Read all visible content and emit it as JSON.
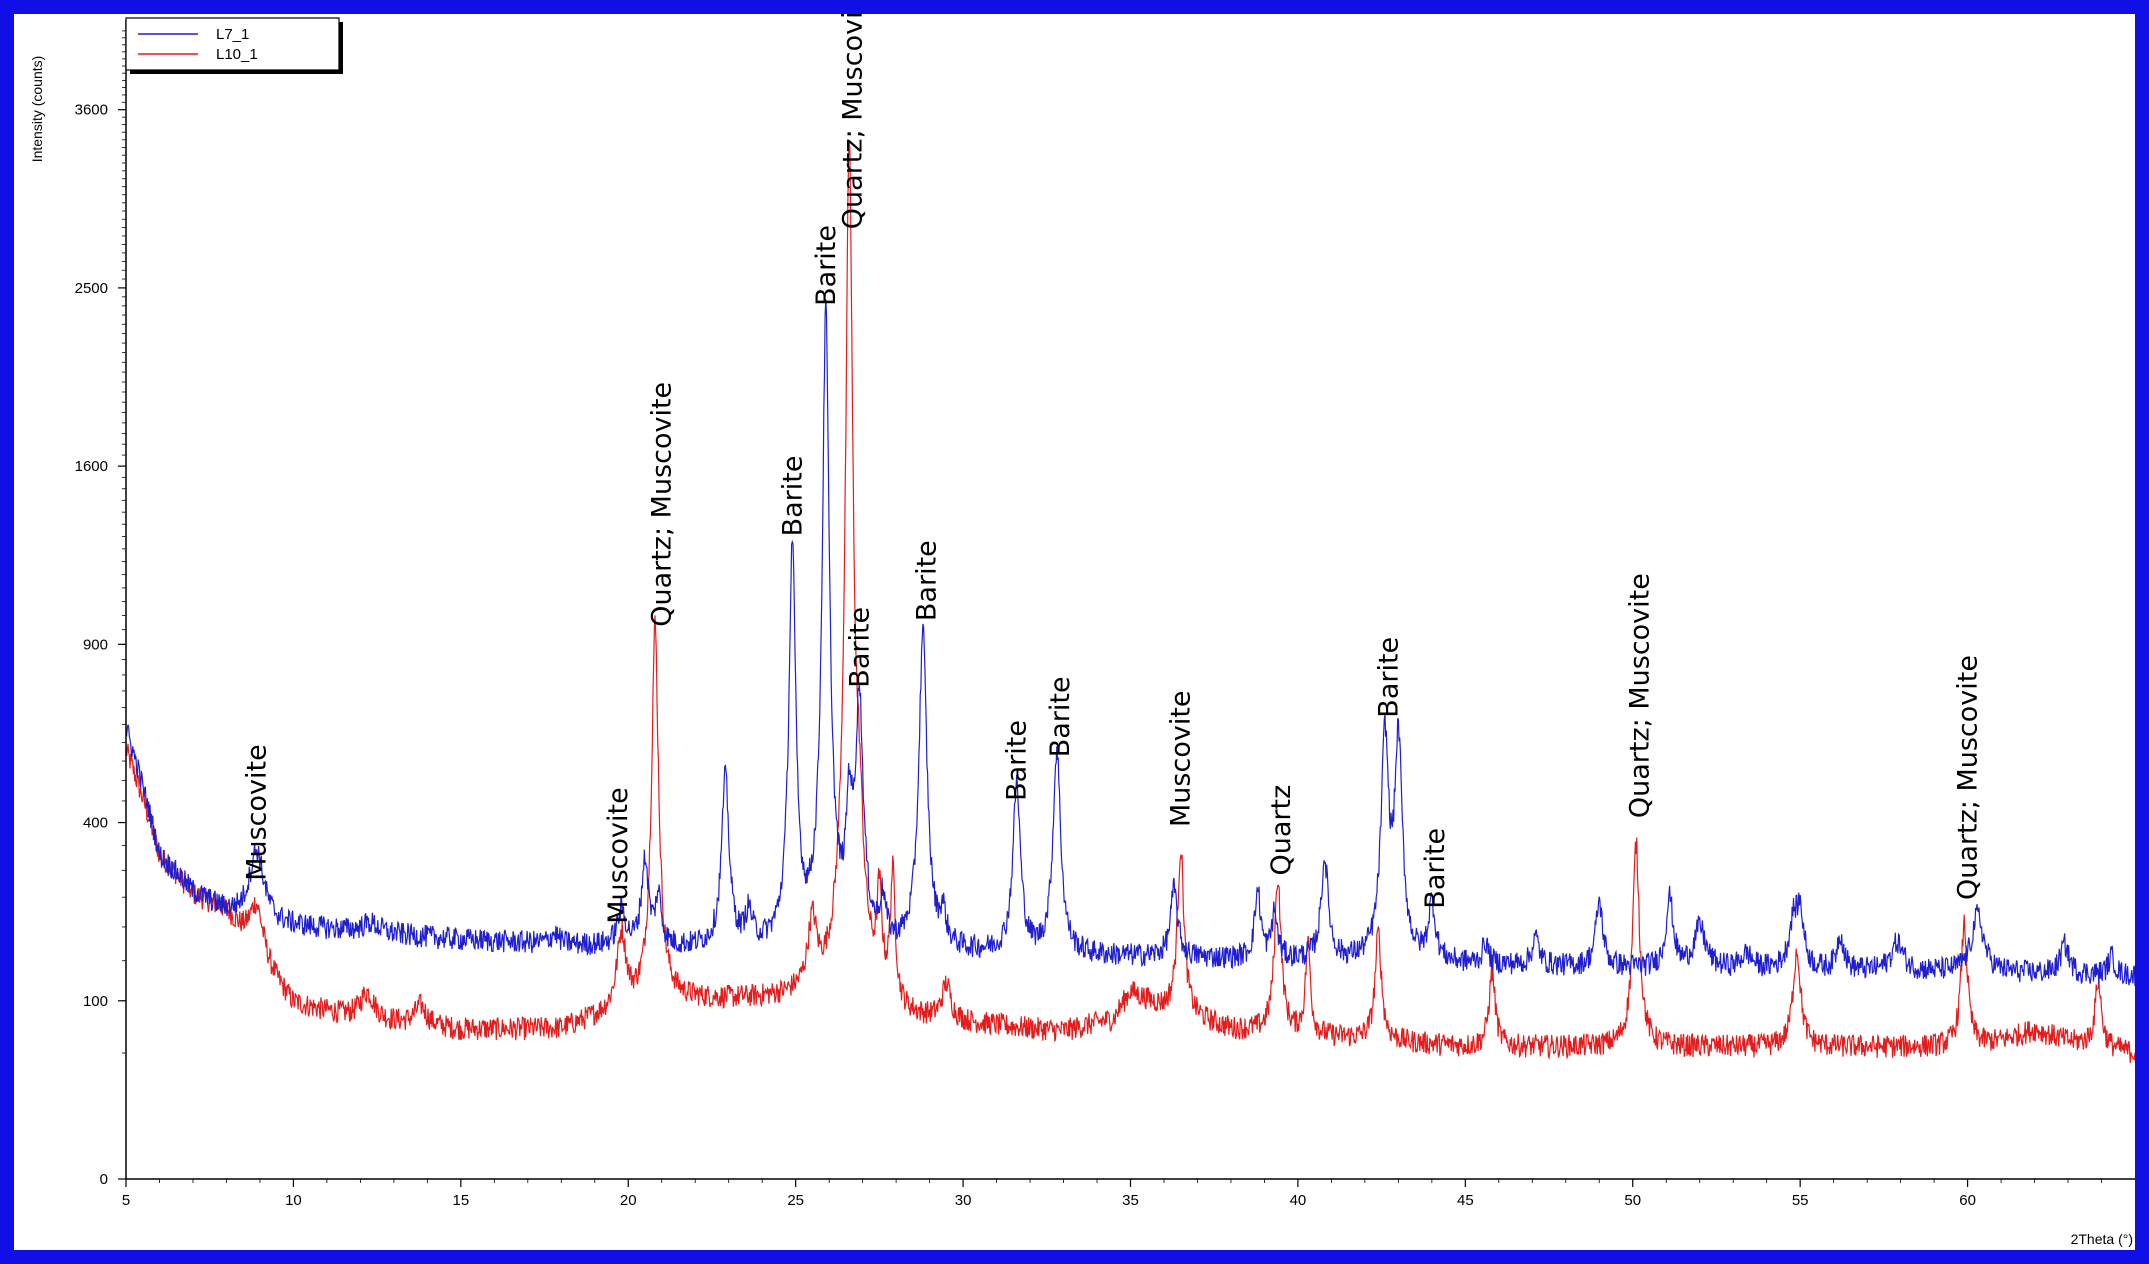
{
  "chart_data": {
    "type": "line",
    "ylabel": "Intensity (counts)",
    "xlabel": "2Theta (°)",
    "xlim": [
      5,
      65
    ],
    "y_ticks": [
      0,
      100,
      400,
      900,
      1600,
      2500,
      3600
    ],
    "y_tick_labels": [
      "0",
      "100",
      "400",
      "900",
      "1600",
      "2500",
      "3600"
    ],
    "y_scale": "sqrt",
    "ylim": [
      0,
      4200
    ],
    "x_ticks": [
      5,
      10,
      15,
      20,
      25,
      30,
      35,
      40,
      45,
      50,
      55,
      60
    ],
    "x_tick_labels": [
      "5",
      "10",
      "15",
      "20",
      "25",
      "30",
      "35",
      "40",
      "45",
      "50",
      "55",
      "60"
    ],
    "legend_position": "top-left",
    "grid": false,
    "series": [
      {
        "name": "L7_1",
        "color": "#1f1fd0",
        "baseline": [
          [
            5,
            640
          ],
          [
            6,
            330
          ],
          [
            7,
            260
          ],
          [
            8,
            225
          ],
          [
            9,
            205
          ],
          [
            12,
            192
          ],
          [
            15,
            180
          ],
          [
            20,
            168
          ],
          [
            25,
            165
          ],
          [
            30,
            160
          ],
          [
            35,
            155
          ],
          [
            40,
            150
          ],
          [
            45,
            145
          ],
          [
            50,
            140
          ],
          [
            55,
            137
          ],
          [
            60,
            135
          ],
          [
            65,
            130
          ]
        ],
        "peaks": [
          [
            8.9,
            135,
            0.25
          ],
          [
            12.3,
            15,
            0.3
          ],
          [
            17.8,
            15,
            0.15
          ],
          [
            19.8,
            55,
            0.15
          ],
          [
            20.5,
            150,
            0.12
          ],
          [
            20.9,
            80,
            0.1
          ],
          [
            22.9,
            340,
            0.12
          ],
          [
            23.6,
            50,
            0.12
          ],
          [
            24.9,
            1100,
            0.1
          ],
          [
            25.9,
            2200,
            0.1
          ],
          [
            26.6,
            250,
            0.1
          ],
          [
            26.9,
            560,
            0.12
          ],
          [
            27.6,
            70,
            0.1
          ],
          [
            28.8,
            780,
            0.12
          ],
          [
            29.4,
            50,
            0.1
          ],
          [
            31.6,
            330,
            0.12
          ],
          [
            32.8,
            420,
            0.12
          ],
          [
            36.3,
            110,
            0.12
          ],
          [
            38.8,
            110,
            0.1
          ],
          [
            39.3,
            70,
            0.1
          ],
          [
            40.8,
            170,
            0.12
          ],
          [
            42.6,
            470,
            0.12
          ],
          [
            43.0,
            460,
            0.12
          ],
          [
            44.0,
            90,
            0.12
          ],
          [
            45.6,
            30,
            0.1
          ],
          [
            47.1,
            40,
            0.12
          ],
          [
            49.0,
            100,
            0.12
          ],
          [
            51.1,
            110,
            0.12
          ],
          [
            52.0,
            60,
            0.2
          ],
          [
            53.4,
            20,
            0.2
          ],
          [
            54.8,
            70,
            0.15
          ],
          [
            55.0,
            80,
            0.12
          ],
          [
            56.2,
            50,
            0.12
          ],
          [
            57.9,
            40,
            0.2
          ],
          [
            60.3,
            85,
            0.2
          ],
          [
            62.9,
            40,
            0.15
          ],
          [
            64.3,
            25,
            0.12
          ]
        ]
      },
      {
        "name": "L10_1",
        "color": "#e51c1c",
        "baseline": [
          [
            5,
            580
          ],
          [
            6,
            330
          ],
          [
            7,
            255
          ],
          [
            8,
            225
          ],
          [
            9,
            140
          ],
          [
            10,
            95
          ],
          [
            12,
            80
          ],
          [
            15,
            70
          ],
          [
            18,
            70
          ],
          [
            19.5,
            85
          ],
          [
            21,
            100
          ],
          [
            23,
            100
          ],
          [
            25,
            100
          ],
          [
            27,
            95
          ],
          [
            28,
            78
          ],
          [
            30,
            75
          ],
          [
            33,
            68
          ],
          [
            34.5,
            80
          ],
          [
            35,
            110
          ],
          [
            36,
            90
          ],
          [
            38,
            70
          ],
          [
            40,
            65
          ],
          [
            45,
            55
          ],
          [
            50,
            55
          ],
          [
            55,
            55
          ],
          [
            60,
            55
          ],
          [
            61,
            60
          ],
          [
            62,
            70
          ],
          [
            63,
            60
          ],
          [
            65,
            50
          ]
        ],
        "peaks": [
          [
            8.9,
            90,
            0.25
          ],
          [
            12.2,
            30,
            0.25
          ],
          [
            13.8,
            20,
            0.2
          ],
          [
            19.8,
            100,
            0.15
          ],
          [
            20.8,
            870,
            0.1
          ],
          [
            25.5,
            100,
            0.15
          ],
          [
            26.6,
            3300,
            0.1
          ],
          [
            26.9,
            200,
            0.12
          ],
          [
            27.5,
            150,
            0.08
          ],
          [
            27.9,
            200,
            0.08
          ],
          [
            29.5,
            40,
            0.15
          ],
          [
            36.5,
            260,
            0.1
          ],
          [
            39.4,
            220,
            0.1
          ],
          [
            40.3,
            110,
            0.08
          ],
          [
            42.4,
            130,
            0.1
          ],
          [
            45.8,
            80,
            0.1
          ],
          [
            50.1,
            300,
            0.1
          ],
          [
            54.9,
            110,
            0.12
          ],
          [
            59.9,
            150,
            0.1
          ],
          [
            63.9,
            70,
            0.1
          ]
        ]
      }
    ],
    "annotations": [
      {
        "text": "Muscovite",
        "x": 8.9,
        "y": 280
      },
      {
        "text": "Muscovite",
        "x": 19.7,
        "y": 205
      },
      {
        "text": "Quartz; Muscovite",
        "x": 21.0,
        "y": 960
      },
      {
        "text": "Barite",
        "x": 24.9,
        "y": 1300
      },
      {
        "text": "Barite",
        "x": 25.9,
        "y": 2400
      },
      {
        "text": "Quartz; Muscovite",
        "x": 26.7,
        "y": 2840
      },
      {
        "text": "Barite",
        "x": 26.9,
        "y": 760
      },
      {
        "text": "Barite",
        "x": 28.9,
        "y": 980
      },
      {
        "text": "Barite",
        "x": 31.6,
        "y": 450
      },
      {
        "text": "Barite",
        "x": 32.9,
        "y": 560
      },
      {
        "text": "Muscovite",
        "x": 36.5,
        "y": 390
      },
      {
        "text": "Quartz",
        "x": 39.5,
        "y": 290
      },
      {
        "text": "Barite",
        "x": 42.7,
        "y": 670
      },
      {
        "text": "Barite",
        "x": 44.1,
        "y": 230
      },
      {
        "text": "Quartz; Muscovite",
        "x": 50.2,
        "y": 410
      },
      {
        "text": "Quartz; Muscovite",
        "x": 60.0,
        "y": 245
      }
    ]
  }
}
